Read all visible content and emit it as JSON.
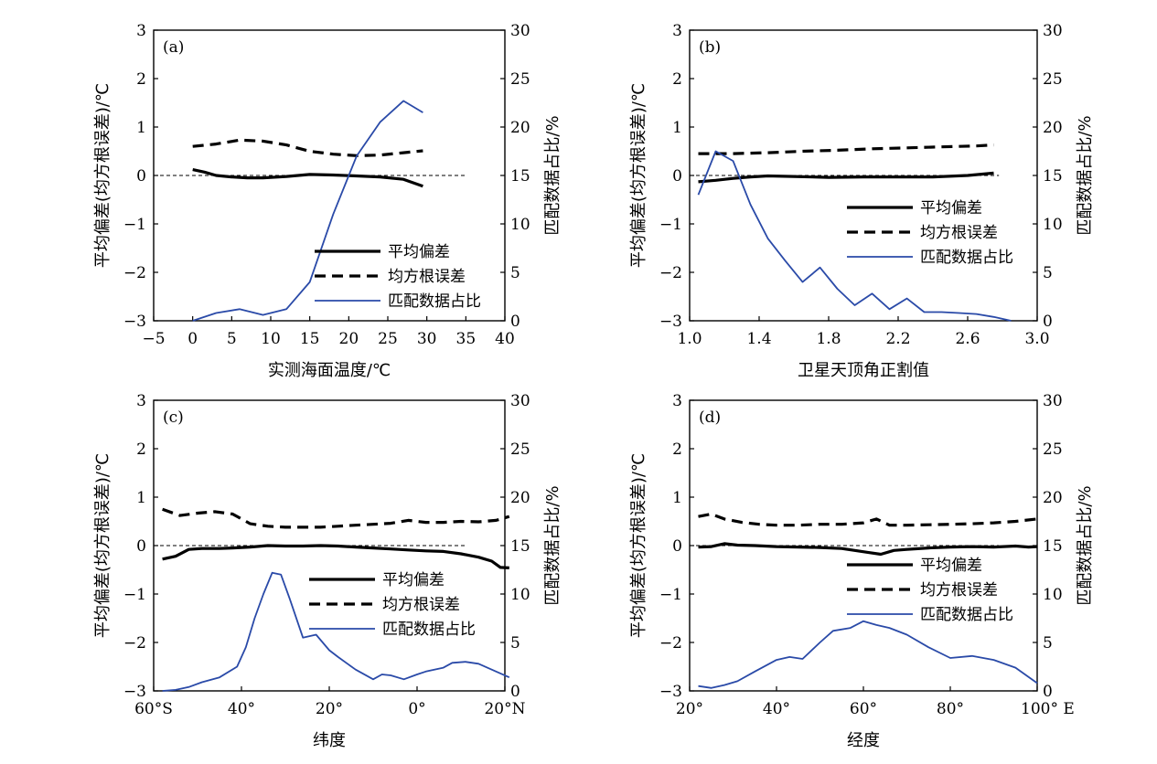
{
  "figure": {
    "legend": {
      "mean_bias": "平均偏差",
      "rmse": "均方根误差",
      "match_ratio": "匹配数据占比"
    },
    "colors": {
      "mean_bias": "#000000",
      "rmse": "#000000",
      "match_ratio": "#2a4aa8"
    }
  },
  "chart_data": [
    {
      "panel_label": "(a)",
      "type": "line",
      "xlabel": "实测海面温度/℃",
      "ylabel_left": "平均偏差(均方根误差)/℃",
      "ylabel_right": "匹配数据占比/%",
      "xlim": [
        -5,
        40
      ],
      "ylim_left": [
        -3,
        3
      ],
      "ylim_right": [
        0,
        30
      ],
      "xticks": [
        -5,
        0,
        5,
        10,
        15,
        20,
        25,
        30,
        35,
        40
      ],
      "xtick_labels": [
        "−5",
        "0",
        "5",
        "10",
        "15",
        "20",
        "25",
        "30",
        "35",
        "40"
      ],
      "yticks_left": [
        "−3",
        "−2",
        "−1",
        "0",
        "1",
        "2",
        "3"
      ],
      "yticks_right": [
        "0",
        "5",
        "10",
        "15",
        "20",
        "25",
        "30"
      ],
      "zero_line": true,
      "legend_position": "lower-right",
      "series": [
        {
          "name": "平均偏差",
          "axis": "left",
          "style": "solid-thick",
          "x": [
            0,
            1.5,
            3,
            5,
            7,
            9,
            12,
            15,
            18,
            21,
            24,
            27,
            29.5
          ],
          "y": [
            0.12,
            0.07,
            0.0,
            -0.03,
            -0.05,
            -0.05,
            -0.02,
            0.02,
            0.01,
            -0.01,
            -0.03,
            -0.08,
            -0.22
          ]
        },
        {
          "name": "均方根误差",
          "axis": "left",
          "style": "dashed",
          "x": [
            0,
            3,
            6,
            9,
            12,
            15,
            18,
            21,
            24,
            27,
            29.5
          ],
          "y": [
            0.6,
            0.65,
            0.73,
            0.71,
            0.63,
            0.5,
            0.44,
            0.41,
            0.42,
            0.47,
            0.51
          ]
        },
        {
          "name": "匹配数据占比",
          "axis": "right",
          "style": "solid-thin",
          "x": [
            0,
            3,
            6,
            9,
            12,
            15,
            18,
            21,
            24,
            27,
            29.5
          ],
          "y": [
            0,
            0.8,
            1.2,
            0.6,
            1.2,
            4,
            11,
            17,
            20.5,
            22.7,
            21.5
          ]
        }
      ]
    },
    {
      "panel_label": "(b)",
      "type": "line",
      "xlabel": "卫星天顶角正割值",
      "ylabel_left": "平均偏差(均方根误差)/℃",
      "ylabel_right": "匹配数据占比/%",
      "xlim": [
        1.0,
        3.0
      ],
      "ylim_left": [
        -3,
        3
      ],
      "ylim_right": [
        0,
        30
      ],
      "xticks": [
        1.0,
        1.4,
        1.8,
        2.2,
        2.6,
        3.0
      ],
      "xtick_labels": [
        "1.0",
        "1.4",
        "1.8",
        "2.2",
        "2.6",
        "3.0"
      ],
      "yticks_left": [
        "−3",
        "−2",
        "−1",
        "0",
        "1",
        "2",
        "3"
      ],
      "yticks_right": [
        "0",
        "5",
        "10",
        "15",
        "20",
        "25",
        "30"
      ],
      "zero_line": true,
      "legend_position": "right",
      "series": [
        {
          "name": "平均偏差",
          "axis": "left",
          "style": "solid-thick",
          "x": [
            1.05,
            1.15,
            1.25,
            1.35,
            1.45,
            1.6,
            1.8,
            2.0,
            2.2,
            2.4,
            2.6,
            2.75
          ],
          "y": [
            -0.13,
            -0.1,
            -0.06,
            -0.03,
            -0.01,
            -0.02,
            -0.04,
            -0.03,
            -0.03,
            -0.03,
            0.0,
            0.05
          ]
        },
        {
          "name": "均方根误差",
          "axis": "left",
          "style": "dashed",
          "x": [
            1.05,
            1.25,
            1.45,
            1.65,
            1.85,
            2.05,
            2.25,
            2.45,
            2.65,
            2.75
          ],
          "y": [
            0.45,
            0.45,
            0.47,
            0.5,
            0.52,
            0.55,
            0.57,
            0.59,
            0.61,
            0.63
          ]
        },
        {
          "name": "匹配数据占比",
          "axis": "right",
          "style": "solid-thin",
          "x": [
            1.05,
            1.15,
            1.25,
            1.35,
            1.45,
            1.55,
            1.65,
            1.75,
            1.85,
            1.95,
            2.05,
            2.15,
            2.25,
            2.35,
            2.45,
            2.55,
            2.65,
            2.75,
            2.85
          ],
          "y": [
            13,
            17.5,
            16.5,
            12,
            8.5,
            6.2,
            4,
            5.5,
            3.3,
            1.6,
            2.8,
            1.2,
            2.3,
            0.9,
            0.9,
            0.8,
            0.7,
            0.4,
            0.0
          ]
        }
      ]
    },
    {
      "panel_label": "(c)",
      "type": "line",
      "xlabel": "纬度",
      "ylabel_left": "平均偏差(均方根误差)/℃",
      "ylabel_right": "匹配数据占比/%",
      "xlim": [
        -60,
        20
      ],
      "ylim_left": [
        -3,
        3
      ],
      "ylim_right": [
        0,
        30
      ],
      "xticks": [
        -60,
        -40,
        -20,
        0,
        20
      ],
      "xtick_labels": [
        "60°S",
        "40°",
        "20°",
        "0°",
        "20°N"
      ],
      "yticks_left": [
        "−3",
        "−2",
        "−1",
        "0",
        "1",
        "2",
        "3"
      ],
      "yticks_right": [
        "0",
        "5",
        "10",
        "15",
        "20",
        "25",
        "30"
      ],
      "zero_line": true,
      "legend_position": "right",
      "series": [
        {
          "name": "平均偏差",
          "axis": "left",
          "style": "solid-thick",
          "x": [
            -58,
            -55,
            -52,
            -49,
            -45,
            -42,
            -38,
            -34,
            -30,
            -26,
            -22,
            -18,
            -14,
            -10,
            -6,
            -2,
            2,
            6,
            10,
            14,
            17,
            19,
            21
          ],
          "y": [
            -0.28,
            -0.22,
            -0.08,
            -0.06,
            -0.06,
            -0.05,
            -0.03,
            0.0,
            -0.01,
            -0.01,
            0.0,
            -0.01,
            -0.03,
            -0.05,
            -0.07,
            -0.09,
            -0.11,
            -0.12,
            -0.17,
            -0.24,
            -0.32,
            -0.45,
            -0.46
          ]
        },
        {
          "name": "均方根误差",
          "axis": "left",
          "style": "dashed",
          "x": [
            -58,
            -54,
            -50,
            -46,
            -42,
            -38,
            -34,
            -30,
            -26,
            -22,
            -18,
            -14,
            -10,
            -6,
            -2,
            2,
            6,
            10,
            14,
            18,
            21
          ],
          "y": [
            0.75,
            0.62,
            0.67,
            0.7,
            0.65,
            0.45,
            0.4,
            0.38,
            0.38,
            0.38,
            0.4,
            0.42,
            0.44,
            0.46,
            0.52,
            0.48,
            0.48,
            0.5,
            0.49,
            0.52,
            0.6
          ]
        },
        {
          "name": "匹配数据占比",
          "axis": "right",
          "style": "solid-thin",
          "x": [
            -58,
            -55,
            -52,
            -49,
            -45,
            -41,
            -39,
            -37,
            -35,
            -33,
            -31,
            -29,
            -26,
            -23,
            -20,
            -18,
            -14,
            -10,
            -8,
            -6,
            -3,
            0,
            2,
            6,
            8,
            11,
            14,
            17,
            19,
            21
          ],
          "y": [
            0,
            0.1,
            0.4,
            0.9,
            1.4,
            2.5,
            4.5,
            7.5,
            10,
            12.2,
            12,
            9.5,
            5.5,
            5.8,
            4.2,
            3.5,
            2.2,
            1.2,
            1.7,
            1.6,
            1.2,
            1.7,
            2.0,
            2.4,
            2.9,
            3.0,
            2.8,
            2.2,
            1.8,
            1.4
          ]
        }
      ]
    },
    {
      "panel_label": "(d)",
      "type": "line",
      "xlabel": "经度",
      "ylabel_left": "平均偏差(均方根误差)/℃",
      "ylabel_right": "匹配数据占比/%",
      "xlim": [
        20,
        100
      ],
      "ylim_left": [
        -3,
        3
      ],
      "ylim_right": [
        0,
        30
      ],
      "xticks": [
        20,
        40,
        60,
        80,
        100
      ],
      "xtick_labels": [
        "20°",
        "40°",
        "60°",
        "80°",
        "100° E"
      ],
      "yticks_left": [
        "−3",
        "−2",
        "−1",
        "0",
        "1",
        "2",
        "3"
      ],
      "yticks_right": [
        "0",
        "5",
        "10",
        "15",
        "20",
        "25",
        "30"
      ],
      "zero_line": true,
      "legend_position": "right",
      "series": [
        {
          "name": "平均偏差",
          "axis": "left",
          "style": "solid-thick",
          "x": [
            22,
            25,
            28,
            31,
            35,
            40,
            45,
            50,
            55,
            58,
            61,
            64,
            67,
            70,
            75,
            80,
            85,
            90,
            95,
            98,
            100
          ],
          "y": [
            -0.03,
            -0.02,
            0.04,
            0.01,
            0.0,
            -0.02,
            -0.03,
            -0.04,
            -0.06,
            -0.1,
            -0.14,
            -0.18,
            -0.1,
            -0.08,
            -0.05,
            -0.03,
            -0.02,
            -0.03,
            -0.01,
            -0.03,
            -0.02
          ]
        },
        {
          "name": "均方根误差",
          "axis": "left",
          "style": "dashed",
          "x": [
            22,
            25,
            28,
            32,
            36,
            40,
            45,
            50,
            55,
            60,
            63,
            66,
            70,
            75,
            80,
            85,
            90,
            95,
            100
          ],
          "y": [
            0.6,
            0.65,
            0.55,
            0.48,
            0.44,
            0.42,
            0.42,
            0.44,
            0.44,
            0.47,
            0.55,
            0.42,
            0.42,
            0.43,
            0.44,
            0.45,
            0.47,
            0.5,
            0.55
          ]
        },
        {
          "name": "匹配数据占比",
          "axis": "right",
          "style": "solid-thin",
          "x": [
            22,
            25,
            28,
            31,
            35,
            40,
            43,
            46,
            50,
            53,
            57,
            60,
            63,
            66,
            70,
            75,
            80,
            85,
            90,
            95,
            100
          ],
          "y": [
            0.5,
            0.3,
            0.6,
            1.0,
            2.0,
            3.2,
            3.5,
            3.3,
            5.0,
            6.2,
            6.5,
            7.2,
            6.8,
            6.5,
            5.8,
            4.5,
            3.4,
            3.6,
            3.2,
            2.4,
            0.8
          ]
        }
      ]
    }
  ]
}
